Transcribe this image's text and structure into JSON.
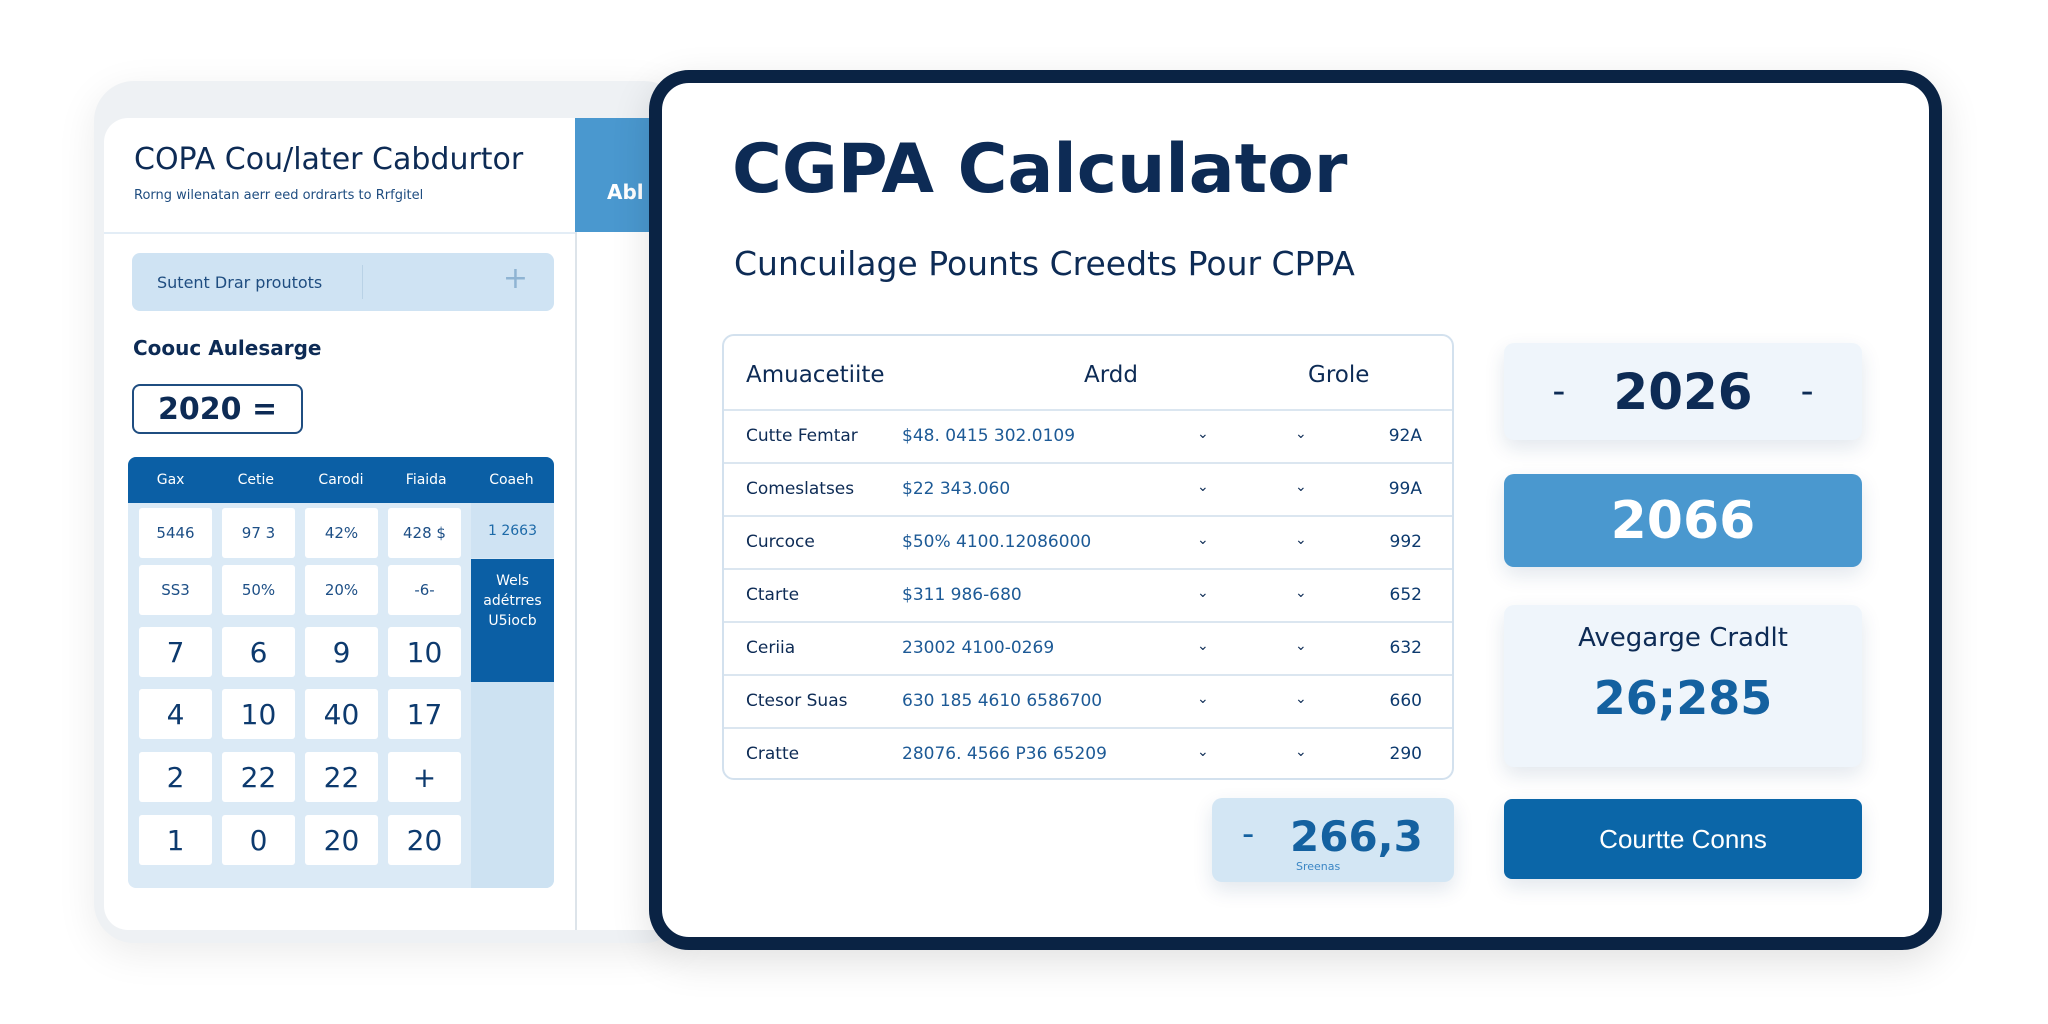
{
  "left_panel": {
    "title": "COPA Cou/later Cabdurtor",
    "subtitle": "Rorng wilenatan aerr eed ordrarts to Rrfgitel",
    "tab_label": "Abl",
    "search": {
      "value": "Sutent Drar proutots",
      "add_icon": "plus-icon"
    },
    "section_label": "Coouc Aulesarge",
    "input_value": "2020 =",
    "grid": {
      "headers": [
        "Gax",
        "Cetie",
        "Carodi",
        "Fiaida",
        "Coaeh"
      ],
      "rows": [
        [
          "5446",
          "97 3",
          "42%",
          "428 $"
        ],
        [
          "SS3",
          "50%",
          "20%",
          "-6-"
        ],
        [
          "7",
          "6",
          "9",
          "10"
        ],
        [
          "4",
          "10",
          "40",
          "17"
        ],
        [
          "2",
          "22",
          "22",
          "+"
        ],
        [
          "1",
          "0",
          "20",
          "20"
        ]
      ],
      "side_value": "1 2663",
      "side_block": "Wels adétrres U5iocb"
    }
  },
  "main": {
    "title": "CGPA Calculator",
    "subtitle": "Cuncuilage Pounts Creedts Pour CPPA",
    "table": {
      "headers": [
        "Amuacetiite",
        "Ardd",
        "Grole"
      ],
      "rows": [
        {
          "name": "Cutte Femtar",
          "value": "$48. 0415 302.0109",
          "grade": "92A"
        },
        {
          "name": "Comeslatses",
          "value": "$22 343.060",
          "grade": "99A"
        },
        {
          "name": "Curcoce",
          "value": "$50%   4100.12086000",
          "grade": "992"
        },
        {
          "name": "Ctarte",
          "value": "$311 986-680",
          "grade": "652"
        },
        {
          "name": "Ceriia",
          "value": "23002   4100-0269",
          "grade": "632"
        },
        {
          "name": "Ctesor Suas",
          "value": "630 185   4610 6586700",
          "grade": "660"
        },
        {
          "name": "Cratte",
          "value": "28076.  4566 P36 65209",
          "grade": "290"
        }
      ],
      "chevron": "⌄"
    },
    "stepper": {
      "value": "2026",
      "dash": "-"
    },
    "highlight_value": "2066",
    "average": {
      "label": "Avegarge Cradlt",
      "value": "26;285"
    },
    "summary": {
      "dash": "-",
      "value": "266,3",
      "caption": "Sreenas"
    },
    "button_label": "Courtte Conns"
  }
}
